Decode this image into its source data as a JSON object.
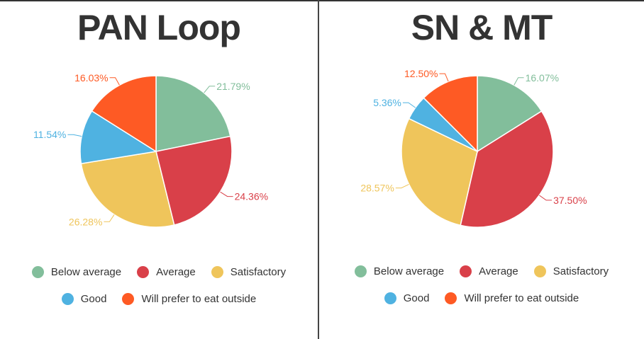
{
  "colors": {
    "Below average": "#82be9b",
    "Average": "#d94049",
    "Satisfactory": "#efc55b",
    "Good": "#4fb2e1",
    "Will prefer to eat outside": "#fe5a24"
  },
  "chart_data": [
    {
      "type": "pie",
      "title": "PAN Loop",
      "categories": [
        "Below average",
        "Average",
        "Satisfactory",
        "Good",
        "Will prefer to eat outside"
      ],
      "values": [
        21.79,
        24.36,
        26.28,
        11.54,
        16.03
      ],
      "labels": [
        "21.79%",
        "24.36%",
        "26.28%",
        "11.54%",
        "16.03%"
      ],
      "legend_position": "bottom"
    },
    {
      "type": "pie",
      "title": "SN & MT",
      "categories": [
        "Below average",
        "Average",
        "Satisfactory",
        "Good",
        "Will prefer to eat outside"
      ],
      "values": [
        16.07,
        37.5,
        28.57,
        5.36,
        12.5
      ],
      "labels": [
        "16.07%",
        "37.50%",
        "28.57%",
        "5.36%",
        "12.50%"
      ],
      "legend_position": "bottom"
    }
  ]
}
